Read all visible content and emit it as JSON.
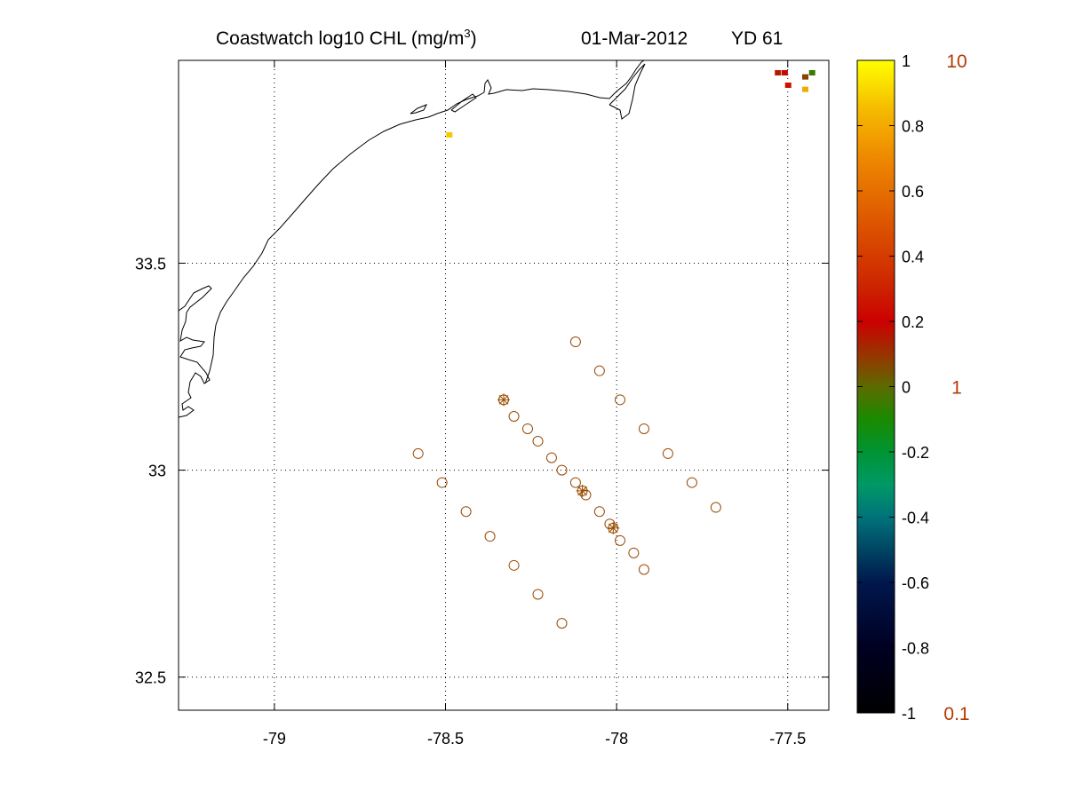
{
  "title": {
    "main": "Coastwatch  log10  CHL (mg/m",
    "superscript": "3",
    "close": ")",
    "date": "01-Mar-2012",
    "yd": "YD 61"
  },
  "map": {
    "lon_range": [
      -79.28,
      -77.38
    ],
    "lat_range": [
      32.42,
      33.99
    ],
    "x_ticks": [
      -79,
      -78.5,
      -78,
      -77.5
    ],
    "y_ticks": [
      32.5,
      33,
      33.5
    ],
    "x_tick_labels": [
      "-79",
      "-78.5",
      "-78",
      "-77.5"
    ],
    "y_tick_labels": [
      "32.5",
      "33",
      "33.5"
    ],
    "grid": "dotted",
    "coastline_color": "#000000",
    "station_color": "#9a4a00",
    "stations": [
      {
        "lon": -78.12,
        "lat": 33.31
      },
      {
        "lon": -78.05,
        "lat": 33.24
      },
      {
        "lon": -77.99,
        "lat": 33.17
      },
      {
        "lon": -77.92,
        "lat": 33.1
      },
      {
        "lon": -77.85,
        "lat": 33.04
      },
      {
        "lon": -77.78,
        "lat": 32.97
      },
      {
        "lon": -77.71,
        "lat": 32.91
      },
      {
        "lon": -78.33,
        "lat": 33.17
      },
      {
        "lon": -78.3,
        "lat": 33.13
      },
      {
        "lon": -78.26,
        "lat": 33.1
      },
      {
        "lon": -78.23,
        "lat": 33.07
      },
      {
        "lon": -78.19,
        "lat": 33.03
      },
      {
        "lon": -78.16,
        "lat": 33.0
      },
      {
        "lon": -78.12,
        "lat": 32.97
      },
      {
        "lon": -78.09,
        "lat": 32.94
      },
      {
        "lon": -78.05,
        "lat": 32.9
      },
      {
        "lon": -78.02,
        "lat": 32.87
      },
      {
        "lon": -77.99,
        "lat": 32.83
      },
      {
        "lon": -77.95,
        "lat": 32.8
      },
      {
        "lon": -77.92,
        "lat": 32.76
      },
      {
        "lon": -78.58,
        "lat": 33.04
      },
      {
        "lon": -78.51,
        "lat": 32.97
      },
      {
        "lon": -78.44,
        "lat": 32.9
      },
      {
        "lon": -78.37,
        "lat": 32.84
      },
      {
        "lon": -78.3,
        "lat": 32.77
      },
      {
        "lon": -78.23,
        "lat": 32.7
      },
      {
        "lon": -78.16,
        "lat": 32.63
      }
    ],
    "cast_markers": [
      {
        "lon": -78.33,
        "lat": 33.17
      },
      {
        "lon": -78.1,
        "lat": 32.95
      },
      {
        "lon": -78.01,
        "lat": 32.86
      }
    ],
    "chl_pixels": [
      {
        "lon": -77.53,
        "lat": 33.96,
        "value": 0.15
      },
      {
        "lon": -77.51,
        "lat": 33.96,
        "value": 0.18
      },
      {
        "lon": -77.5,
        "lat": 33.93,
        "value": 0.25
      },
      {
        "lon": -77.45,
        "lat": 33.95,
        "value": 0.08
      },
      {
        "lon": -77.43,
        "lat": 33.96,
        "value": -0.05
      },
      {
        "lon": -77.45,
        "lat": 33.92,
        "value": 0.8
      },
      {
        "lon": -78.49,
        "lat": 33.81,
        "value": 0.88
      }
    ]
  },
  "colorbar": {
    "range": [
      -1,
      1
    ],
    "ticks": [
      1,
      0.8,
      0.6,
      0.4,
      0.2,
      0,
      -0.2,
      -0.4,
      -0.6,
      -0.8,
      -1
    ],
    "tick_labels": [
      "1",
      "0.8",
      "0.6",
      "0.4",
      "0.2",
      "0",
      "-0.2",
      "-0.4",
      "-0.6",
      "-0.8",
      "-1"
    ],
    "ref_labels": [
      {
        "value": 1,
        "text": "10"
      },
      {
        "value": 0,
        "text": "1"
      },
      {
        "value": -1,
        "text": "0.1"
      }
    ],
    "ref_label_color": "#b33a00",
    "colors": [
      {
        "v": -1.0,
        "c": "#000000"
      },
      {
        "v": -0.8,
        "c": "#000022"
      },
      {
        "v": -0.6,
        "c": "#00174d"
      },
      {
        "v": -0.4,
        "c": "#00737a"
      },
      {
        "v": -0.3,
        "c": "#009966"
      },
      {
        "v": -0.2,
        "c": "#009433"
      },
      {
        "v": -0.1,
        "c": "#1a8a00"
      },
      {
        "v": 0.0,
        "c": "#5c6b00"
      },
      {
        "v": 0.1,
        "c": "#993300"
      },
      {
        "v": 0.2,
        "c": "#cc0000"
      },
      {
        "v": 0.3,
        "c": "#cc2200"
      },
      {
        "v": 0.5,
        "c": "#dd5500"
      },
      {
        "v": 0.7,
        "c": "#ee8800"
      },
      {
        "v": 0.85,
        "c": "#f5bb00"
      },
      {
        "v": 1.0,
        "c": "#ffff00"
      }
    ]
  }
}
